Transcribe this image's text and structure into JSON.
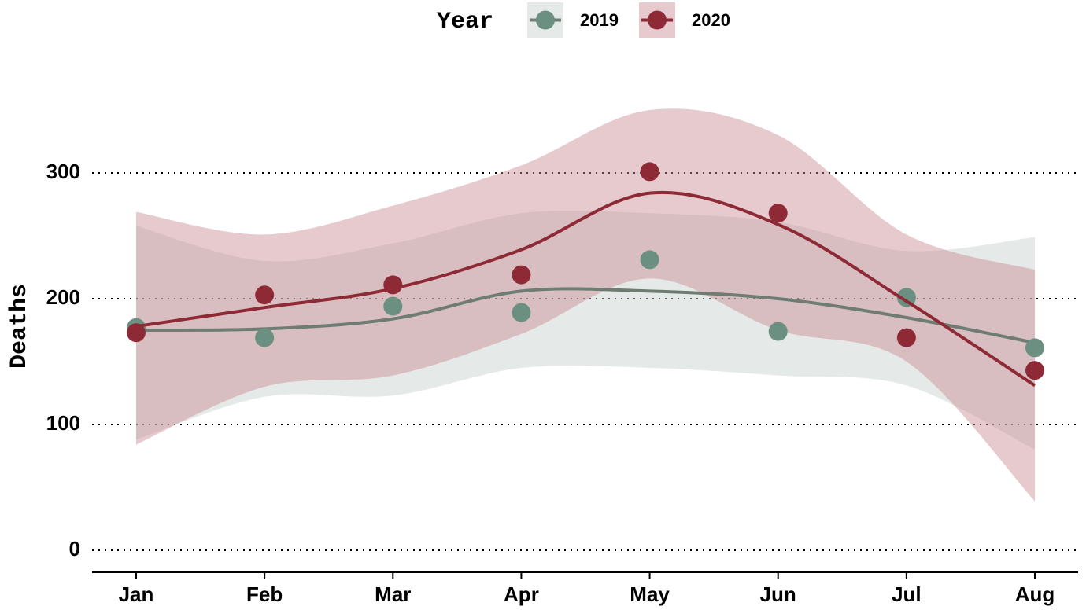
{
  "chart_data": {
    "type": "line",
    "legend_title": "Year",
    "y_label": "Deaths",
    "categories": [
      "Jan",
      "Feb",
      "Mar",
      "Apr",
      "May",
      "Jun",
      "Jul",
      "Aug"
    ],
    "ylim": [
      -17.5,
      400
    ],
    "yticks": [
      0,
      100,
      200,
      300
    ],
    "grid": true,
    "legend": "top",
    "series": [
      {
        "name": "2019",
        "color": "#6b8f80",
        "line_color": "#6f7c74",
        "band_color": "#c5d1cc",
        "values": [
          177,
          169,
          194,
          189,
          231,
          174,
          201,
          161
        ],
        "smooth": [
          175,
          176,
          184,
          206,
          206,
          200,
          185,
          165
        ],
        "upper": [
          258,
          230,
          244,
          268,
          268,
          261,
          238,
          249
        ],
        "lower": [
          88,
          122,
          123,
          145,
          145,
          139,
          131,
          80
        ]
      },
      {
        "name": "2020",
        "color": "#8e2a35",
        "line_color": "#8e2a35",
        "band_color": "#c98a92",
        "values": [
          173,
          203,
          211,
          219,
          301,
          268,
          169,
          143
        ],
        "smooth": [
          178,
          193,
          208,
          239,
          284,
          259,
          198,
          131
        ],
        "upper": [
          269,
          251,
          274,
          306,
          350,
          330,
          251,
          223
        ],
        "lower": [
          84,
          130,
          139,
          172,
          216,
          175,
          150,
          39
        ]
      }
    ]
  }
}
